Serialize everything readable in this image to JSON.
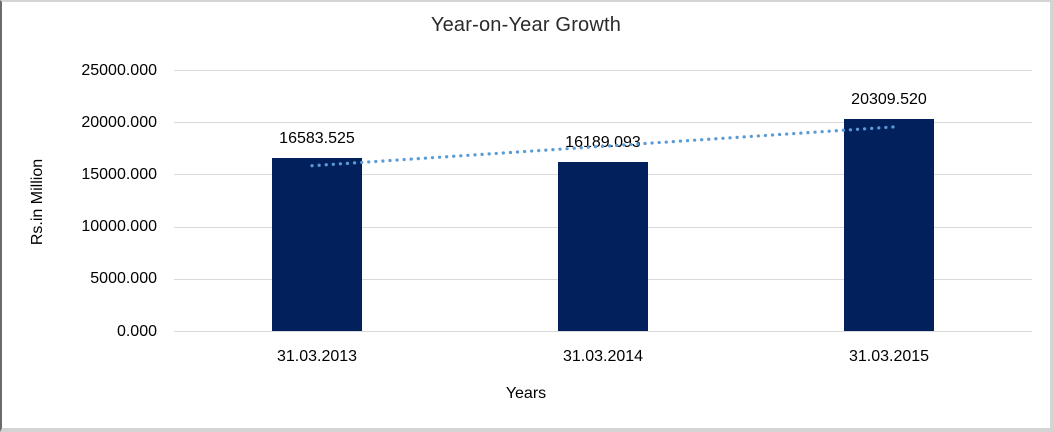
{
  "chart_data": {
    "type": "bar",
    "title": "Year-on-Year Growth",
    "xlabel": "Years",
    "ylabel": "Rs.in Million",
    "categories": [
      "31.03.2013",
      "31.03.2014",
      "31.03.2015"
    ],
    "values": [
      16583.525,
      16189.093,
      20309.52
    ],
    "data_labels": [
      "16583.525",
      "16189.093",
      "20309.520"
    ],
    "ylim": [
      0,
      25000
    ],
    "y_ticks": [
      0,
      5000,
      10000,
      15000,
      20000,
      25000
    ],
    "y_tick_decimals": 3,
    "grid": true,
    "legend": "none",
    "bar_color": "#02215C",
    "gridline_color": "#d9d9d9",
    "trendline": {
      "type": "linear",
      "style": "dotted",
      "color": "#5B9BD5"
    }
  }
}
